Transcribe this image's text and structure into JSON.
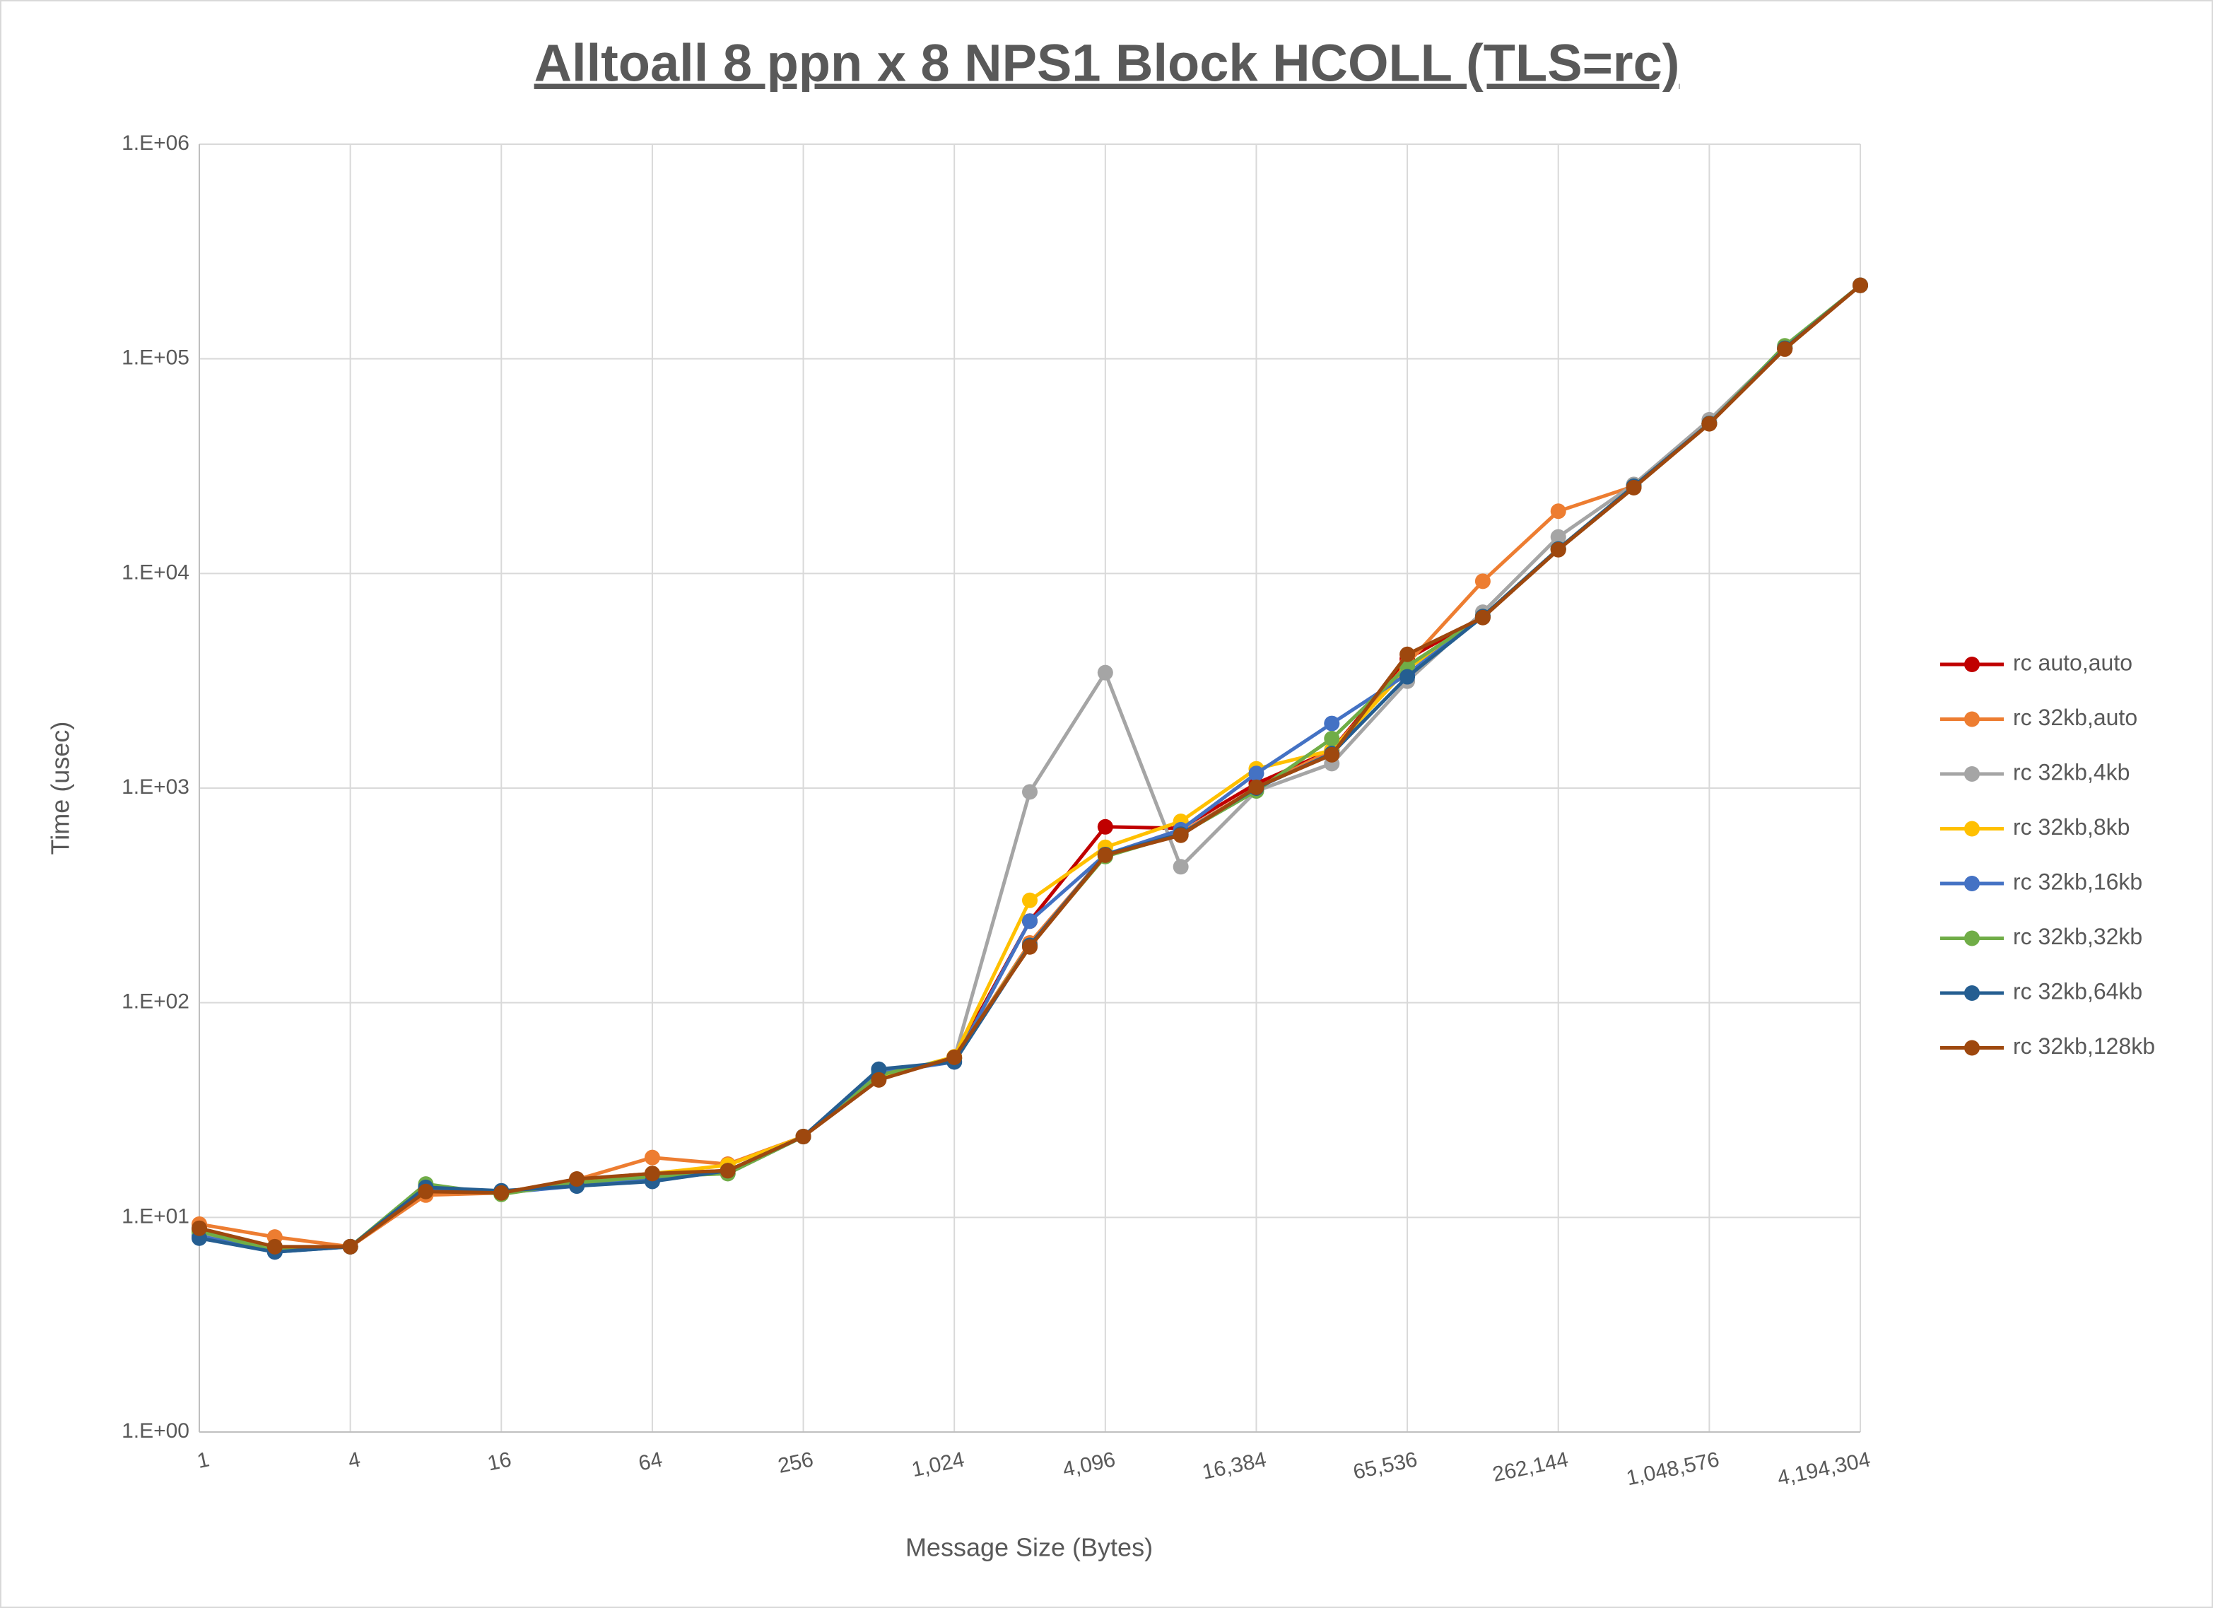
{
  "chart_data": {
    "type": "line",
    "title": "Alltoall 8 ppn x 8 NPS1 Block HCOLL (TLS=rc)",
    "x_label": "Message Size (Bytes)",
    "y_label": "Time (usec)",
    "x": [
      1,
      2,
      4,
      8,
      16,
      32,
      64,
      128,
      256,
      512,
      1024,
      2048,
      4096,
      8192,
      16384,
      32768,
      65536,
      131072,
      262144,
      524288,
      1048576,
      2097152,
      4194304
    ],
    "xlim": [
      1,
      4194304
    ],
    "x_log_base": 2,
    "xticks": [
      1,
      4,
      16,
      64,
      256,
      {
        "value": 1024,
        "label": "1,024"
      },
      {
        "value": 4096,
        "label": "4,096"
      },
      {
        "value": 16384,
        "label": "16,384"
      },
      {
        "value": 65536,
        "label": "65,536"
      },
      {
        "value": 262144,
        "label": "262,144"
      },
      {
        "value": 1048576,
        "label": "1,048,576"
      },
      {
        "value": 4194304,
        "label": "4,194,304"
      }
    ],
    "ylim": [
      1,
      1000000
    ],
    "y_log": true,
    "yticks": [
      {
        "value": 1,
        "label": "1.E+00"
      },
      {
        "value": 10,
        "label": "1.E+01"
      },
      {
        "value": 100,
        "label": "1.E+02"
      },
      {
        "value": 1000,
        "label": "1.E+03"
      },
      {
        "value": 10000,
        "label": "1.E+04"
      },
      {
        "value": 100000,
        "label": "1.E+05"
      },
      {
        "value": 1000000,
        "label": "1.E+06"
      }
    ],
    "grid": true,
    "legend": "right",
    "series": [
      {
        "name": "rc auto,auto",
        "color": "#c00000",
        "values": [
          8.8,
          7.2,
          7.3,
          13.5,
          13,
          15,
          16,
          16.5,
          23.8,
          45,
          55,
          240,
          660,
          650,
          1050,
          1500,
          4000,
          6300,
          13000,
          25500,
          50000,
          112000,
          220000
        ]
      },
      {
        "name": "rc 32kb,auto",
        "color": "#ed7d31",
        "values": [
          9.3,
          8.1,
          7.3,
          12.7,
          13,
          15,
          19,
          17.7,
          23.8,
          45,
          55,
          190,
          490,
          620,
          1000,
          1500,
          3800,
          9200,
          19500,
          25500,
          50000,
          112000,
          220000
        ]
      },
      {
        "name": "rc 32kb,4kb",
        "color": "#a5a5a5",
        "values": [
          8.5,
          7.1,
          7.3,
          14,
          13,
          14.5,
          15.5,
          16,
          23.8,
          46,
          55,
          960,
          3450,
          430,
          970,
          1300,
          3150,
          6600,
          14800,
          26000,
          52000,
          113000,
          220000
        ]
      },
      {
        "name": "rc 32kb,8kb",
        "color": "#ffc000",
        "values": [
          8.6,
          7.0,
          7.3,
          14,
          13,
          15,
          16,
          17.5,
          23.8,
          45,
          56,
          300,
          530,
          700,
          1230,
          1500,
          3600,
          6300,
          13000,
          25500,
          50000,
          112000,
          220000
        ]
      },
      {
        "name": "rc 32kb,16kb",
        "color": "#4472c4",
        "values": [
          8.2,
          6.9,
          7.3,
          13.5,
          13,
          14,
          15,
          16.5,
          23.8,
          47,
          53,
          240,
          490,
          640,
          1170,
          2000,
          3400,
          6300,
          13000,
          25500,
          50000,
          112000,
          220000
        ]
      },
      {
        "name": "rc 32kb,32kb",
        "color": "#70ad47",
        "values": [
          8.6,
          7.0,
          7.3,
          14.3,
          12.8,
          14.5,
          15.5,
          16,
          23.8,
          46,
          55,
          185,
          480,
          610,
          970,
          1700,
          3700,
          6300,
          13000,
          25500,
          50000,
          115000,
          220000
        ]
      },
      {
        "name": "rc 32kb,64kb",
        "color": "#255e91",
        "values": [
          8.0,
          6.9,
          7.3,
          13.8,
          13.3,
          14,
          14.7,
          16.5,
          23.8,
          49,
          53,
          185,
          490,
          610,
          1000,
          1450,
          3300,
          6300,
          13000,
          25500,
          50000,
          112000,
          220000
        ]
      },
      {
        "name": "rc 32kb,128kb",
        "color": "#9e480e",
        "values": [
          8.9,
          7.3,
          7.3,
          13.2,
          13,
          15.1,
          16,
          16.5,
          23.8,
          43.7,
          55.7,
          182,
          487,
          603,
          1009,
          1430,
          4200,
          6230,
          12900,
          25100,
          49800,
          111000,
          220000
        ]
      }
    ]
  }
}
